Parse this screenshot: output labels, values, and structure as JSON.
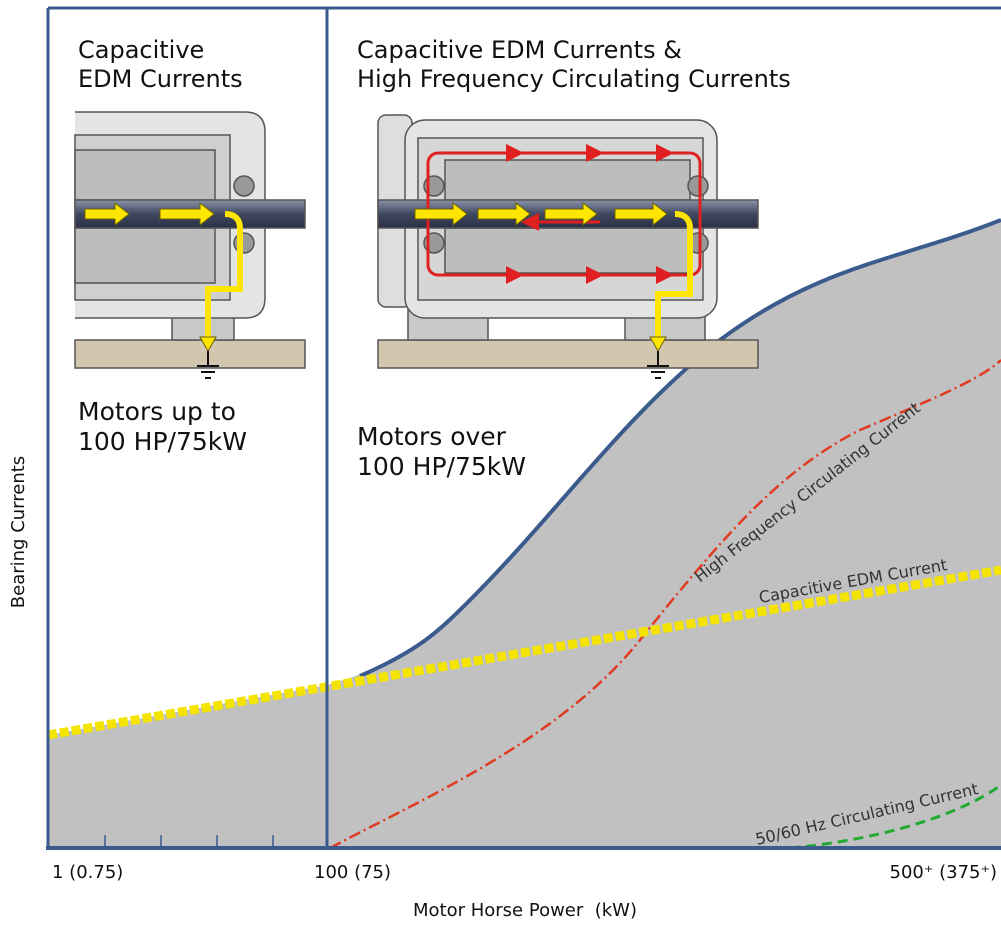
{
  "panels": [
    {
      "heading": [
        "Capacitive",
        "EDM Currents"
      ],
      "caption": [
        "Motors up to",
        "100 HP/75kW"
      ]
    },
    {
      "heading": [
        "Capacitive EDM Currents &",
        "High Frequency Circulating Currents"
      ],
      "caption": [
        "Motors over",
        "100 HP/75kW"
      ]
    }
  ],
  "curve_labels": [
    "High Frequency Circulating Current",
    "Capacitive EDM Current",
    "50/60 Hz Circulating Current"
  ],
  "y_axis_label": "Bearing Currents",
  "x_axis_label": "Motor Horse Power  (kW)",
  "x_tick_labels": [
    "1 (0.75)",
    "100 (75)",
    "500⁺ (375⁺)"
  ]
}
